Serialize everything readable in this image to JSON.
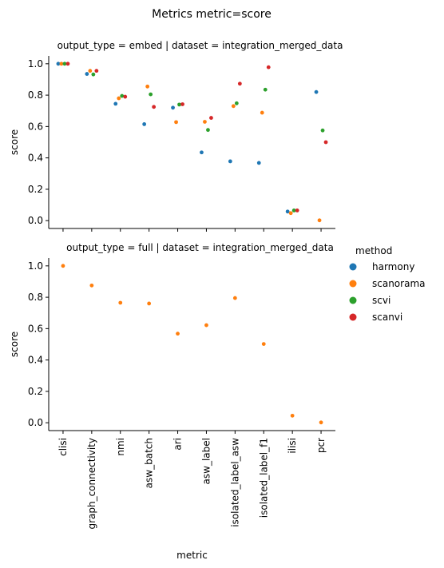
{
  "figure_title": "Metrics metric=score",
  "legend": {
    "title": "method",
    "items": [
      {
        "label": "harmony",
        "color": "#1f77b4"
      },
      {
        "label": "scanorama",
        "color": "#ff7f0e"
      },
      {
        "label": "scvi",
        "color": "#2ca02c"
      },
      {
        "label": "scanvi",
        "color": "#d62728"
      }
    ]
  },
  "chart_data": [
    {
      "type": "scatter",
      "title": "output_type = embed | dataset = integration_merged_data",
      "xlabel": "",
      "ylabel": "score",
      "ylim": [
        -0.05,
        1.05
      ],
      "yticks": [
        "0.0",
        "0.2",
        "0.4",
        "0.6",
        "0.8",
        "1.0"
      ],
      "categories": [
        "clisi",
        "graph_connectivity",
        "nmi",
        "asw_batch",
        "ari",
        "asw_label",
        "isolated_label_asw",
        "isolated_label_f1",
        "ilisi",
        "pcr"
      ],
      "series": [
        {
          "name": "harmony",
          "values": [
            1.0,
            0.935,
            0.745,
            0.615,
            0.72,
            0.435,
            0.378,
            0.368,
            0.058,
            0.82
          ]
        },
        {
          "name": "scanorama",
          "values": [
            1.0,
            0.955,
            0.78,
            0.855,
            0.628,
            0.63,
            0.73,
            0.688,
            0.048,
            0.002
          ]
        },
        {
          "name": "scvi",
          "values": [
            1.0,
            0.932,
            0.795,
            0.805,
            0.74,
            0.578,
            0.748,
            0.835,
            0.065,
            0.575
          ]
        },
        {
          "name": "scanvi",
          "values": [
            1.0,
            0.955,
            0.79,
            0.725,
            0.742,
            0.655,
            0.873,
            0.978,
            0.065,
            0.5
          ]
        }
      ]
    },
    {
      "type": "scatter",
      "title": "output_type = full | dataset = integration_merged_data",
      "xlabel": "metric",
      "ylabel": "score",
      "ylim": [
        -0.05,
        1.05
      ],
      "yticks": [
        "0.0",
        "0.2",
        "0.4",
        "0.6",
        "0.8",
        "1.0"
      ],
      "categories": [
        "clisi",
        "graph_connectivity",
        "nmi",
        "asw_batch",
        "ari",
        "asw_label",
        "isolated_label_asw",
        "isolated_label_f1",
        "ilisi",
        "pcr"
      ],
      "series": [
        {
          "name": "scanorama",
          "values": [
            1.0,
            0.875,
            0.765,
            0.76,
            0.568,
            0.622,
            0.795,
            0.502,
            0.045,
            0.002
          ]
        }
      ]
    }
  ]
}
